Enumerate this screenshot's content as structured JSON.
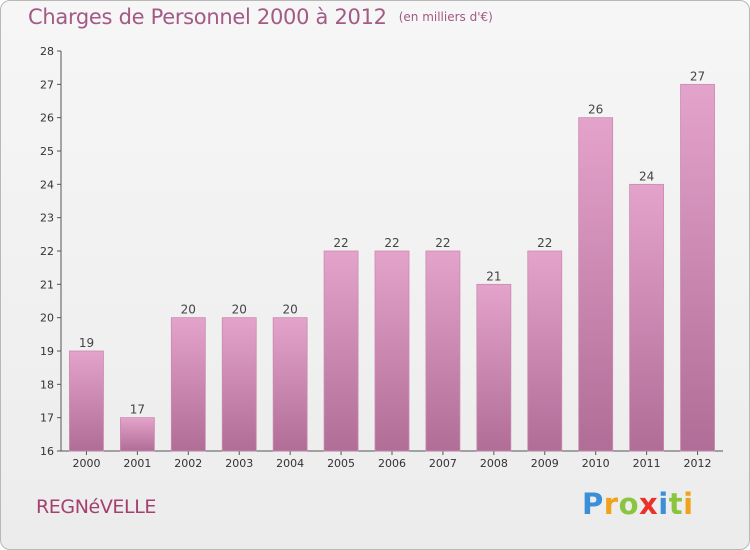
{
  "header": {
    "title": "Charges de Personnel 2000 à 2012",
    "subtitle": "(en milliers d'€)"
  },
  "footer": {
    "place": "REGNéVELLE",
    "logo_letters": [
      "P",
      "r",
      "o",
      "x",
      "i",
      "t",
      "i"
    ]
  },
  "colors": {
    "bar_top": "#e4a3cb",
    "bar_bottom": "#b06e97",
    "title": "#a35a85",
    "place": "#a3406f"
  },
  "chart_data": {
    "type": "bar",
    "title": "Charges de Personnel 2000 à 2012",
    "subtitle": "(en milliers d'€)",
    "xlabel": "",
    "ylabel": "",
    "categories": [
      "2000",
      "2001",
      "2002",
      "2003",
      "2004",
      "2005",
      "2006",
      "2007",
      "2008",
      "2009",
      "2010",
      "2011",
      "2012"
    ],
    "values": [
      19,
      17,
      20,
      20,
      20,
      22,
      22,
      22,
      21,
      22,
      26,
      24,
      27
    ],
    "ylim": [
      16,
      28
    ],
    "yticks": [
      16,
      17,
      18,
      19,
      20,
      21,
      22,
      23,
      24,
      25,
      26,
      27,
      28
    ],
    "grid": false,
    "legend": "none",
    "data_labels": true
  }
}
